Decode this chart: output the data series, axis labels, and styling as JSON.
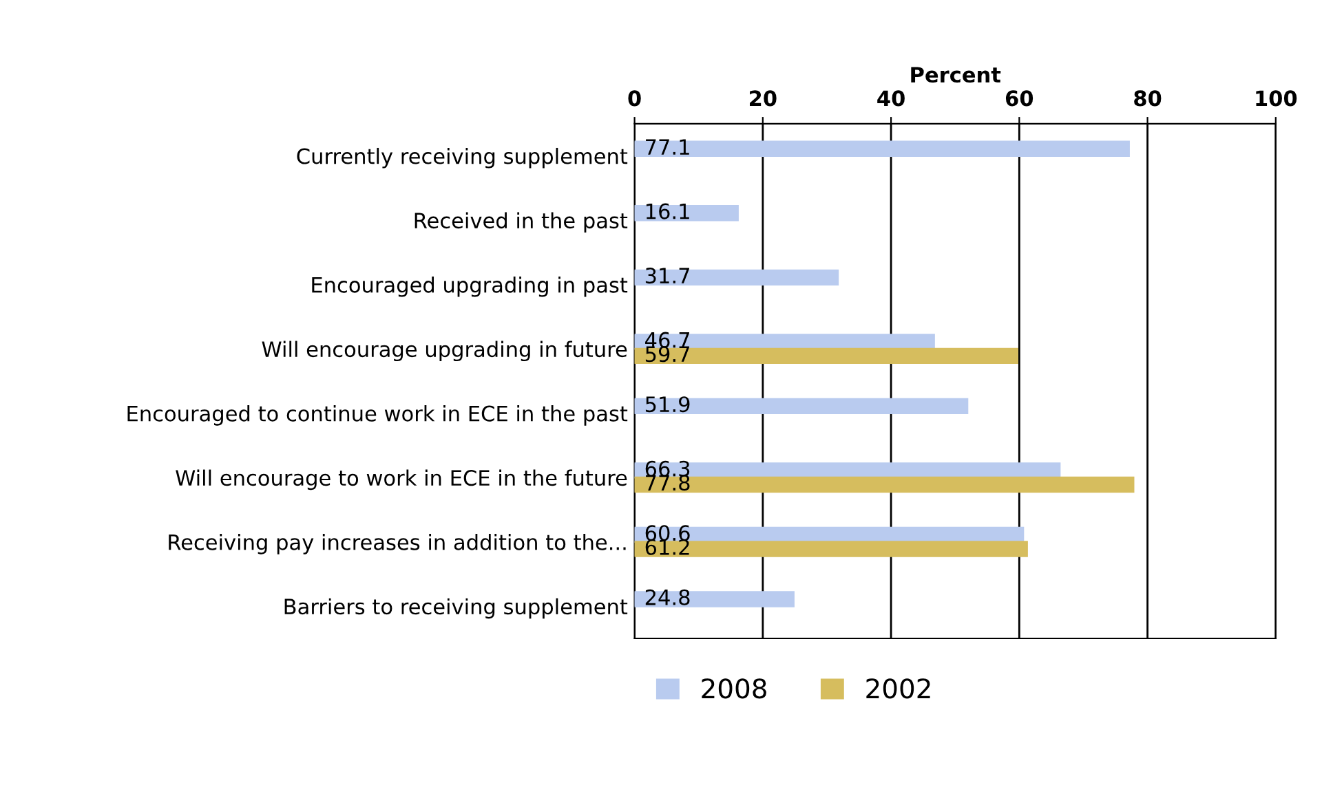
{
  "chart_data": {
    "type": "bar",
    "orientation": "horizontal",
    "xlabel": "Percent",
    "categories": [
      "Currently receiving supplement",
      "Received in the past",
      "Encouraged upgrading in past",
      "Will encourage upgrading in future",
      "Encouraged to continue work in ECE in the past",
      "Will encourage to work in ECE in the future",
      "Receiving pay increases in addition to the...",
      "Barriers to receiving supplement"
    ],
    "series": [
      {
        "name": "2008",
        "color": "#b9cbef",
        "values": [
          77.1,
          16.1,
          31.7,
          46.7,
          51.9,
          66.3,
          60.6,
          24.8
        ]
      },
      {
        "name": "2002",
        "color": "#d6bd5e",
        "values": [
          null,
          null,
          null,
          59.7,
          null,
          77.8,
          61.2,
          null
        ]
      }
    ],
    "xlim": [
      0,
      100
    ],
    "xticks": [
      0,
      20,
      40,
      60,
      80,
      100
    ],
    "grid": "x",
    "legend": "bottom",
    "data_labels": true
  }
}
